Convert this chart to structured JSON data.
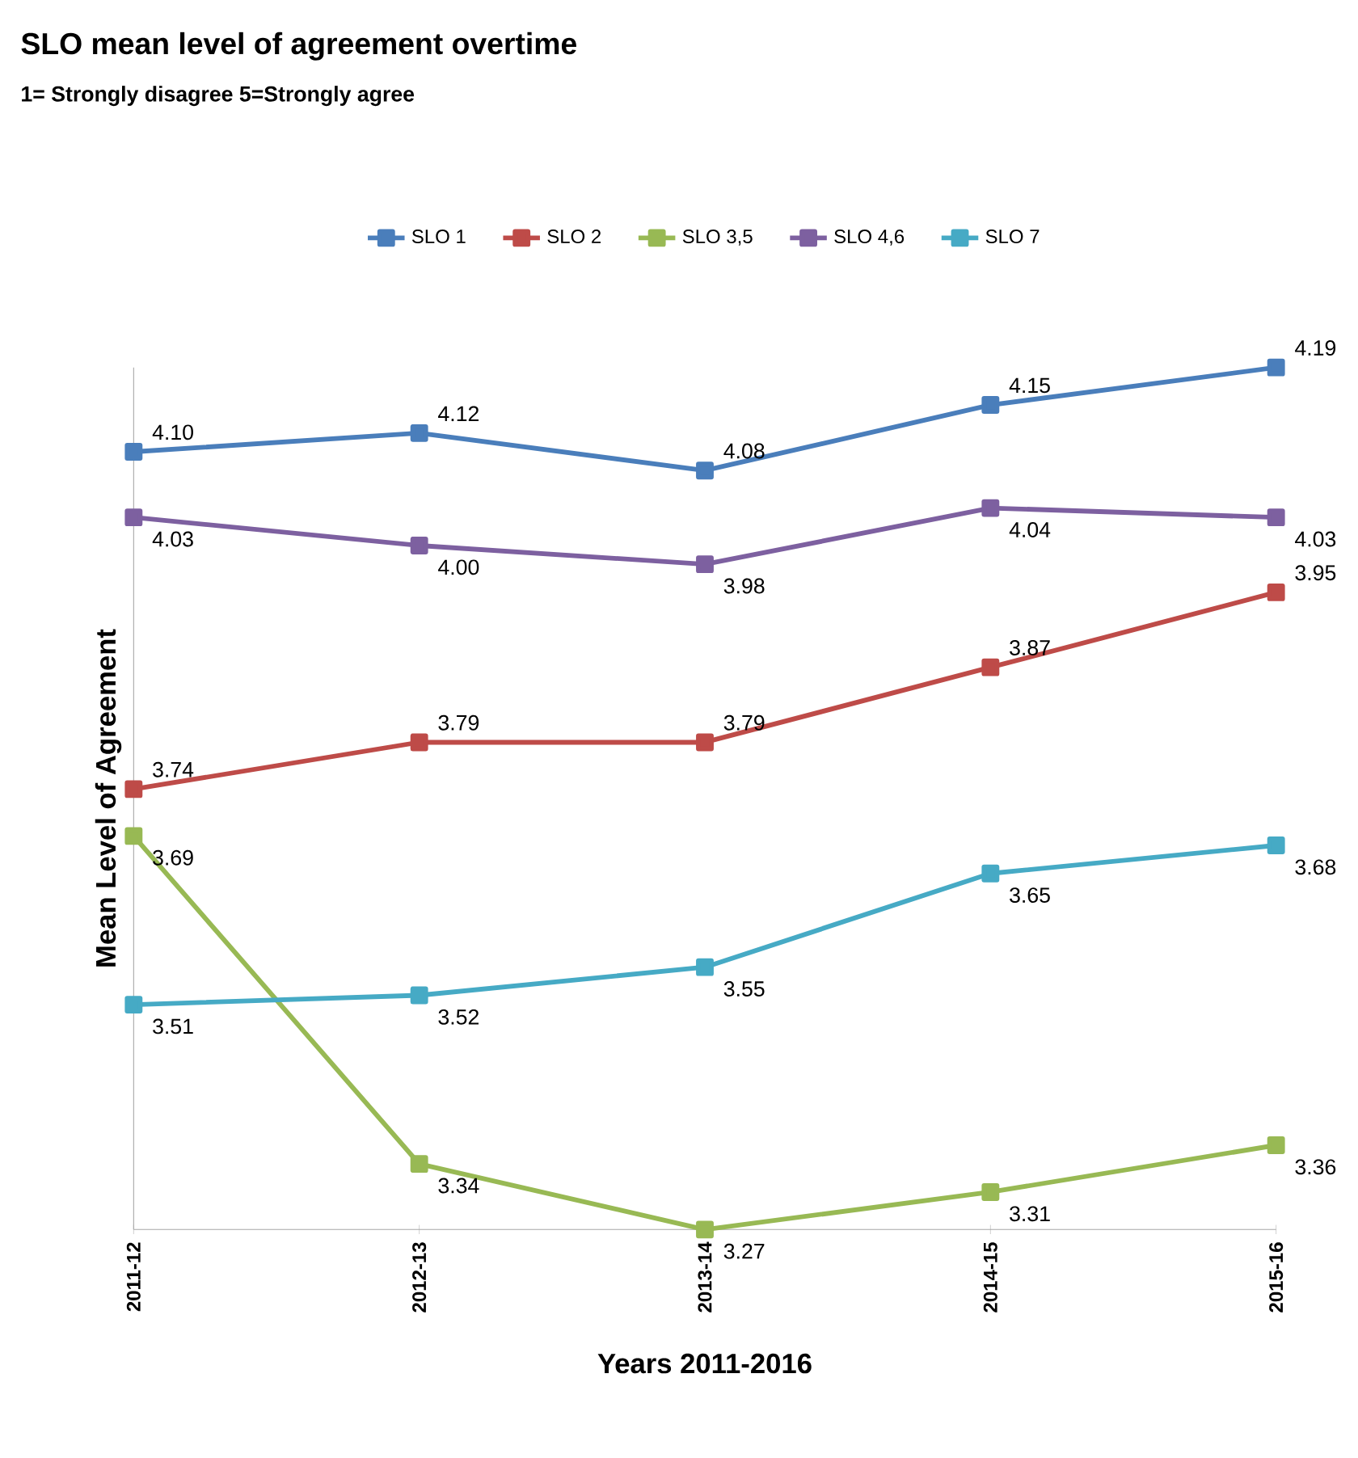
{
  "chart_data": {
    "type": "line",
    "title": "SLO mean level of agreement overtime",
    "subtitle": "1= Strongly disagree 5=Strongly agree",
    "xlabel": "Years 2011-2016",
    "ylabel": "Mean Level of Agreement",
    "categories": [
      "2011-12",
      "2012-13",
      "2013-14",
      "2014-15",
      "2015-16"
    ],
    "series": [
      {
        "name": "SLO 1",
        "color": "#4a7ebb",
        "values": [
          4.1,
          4.12,
          4.08,
          4.15,
          4.19
        ],
        "value_labels": [
          "4.10",
          "4.12",
          "4.08",
          "4.15",
          "4.19"
        ]
      },
      {
        "name": "SLO 2",
        "color": "#be4b48",
        "values": [
          3.74,
          3.79,
          3.79,
          3.87,
          3.95
        ],
        "value_labels": [
          "3.74",
          "3.79",
          "3.79",
          "3.87",
          "3.95"
        ]
      },
      {
        "name": "SLO 3,5",
        "color": "#98b954",
        "values": [
          3.69,
          3.34,
          3.27,
          3.31,
          3.36
        ],
        "value_labels": [
          "3.69",
          "3.34",
          "3.27",
          "3.31",
          "3.36"
        ]
      },
      {
        "name": "SLO 4,6",
        "color": "#7d60a0",
        "values": [
          4.03,
          4.0,
          3.98,
          4.04,
          4.03
        ],
        "value_labels": [
          "4.03",
          "4.00",
          "3.98",
          "4.04",
          "4.03"
        ]
      },
      {
        "name": "SLO 7",
        "color": "#46aac5",
        "values": [
          3.51,
          3.52,
          3.55,
          3.65,
          3.68
        ],
        "value_labels": [
          "3.51",
          "3.52",
          "3.55",
          "3.65",
          "3.68"
        ]
      }
    ],
    "legend": "top",
    "marker": "square",
    "line_style": "solid",
    "grid": false,
    "tick_labels": "x"
  }
}
